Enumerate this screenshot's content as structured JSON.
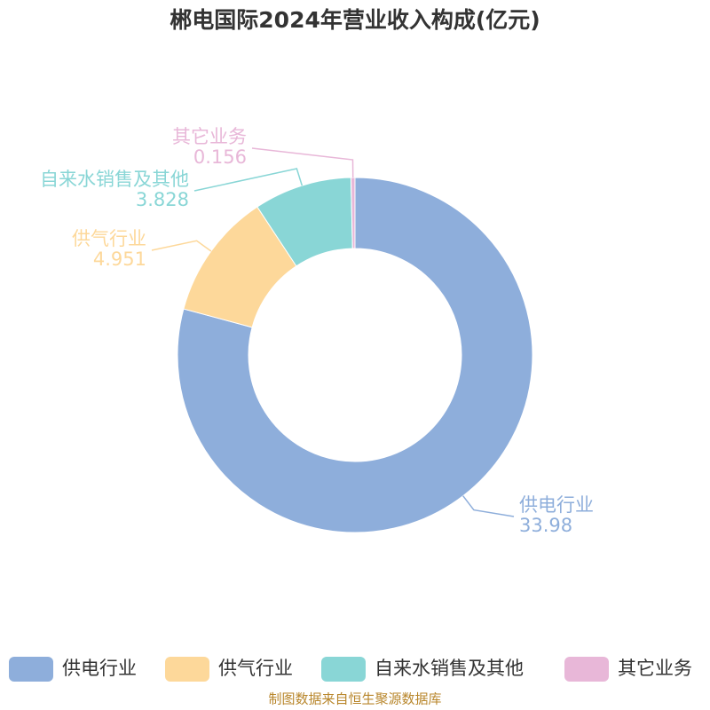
{
  "chart_data": {
    "type": "pie",
    "title": "郴电国际2024年营业收入构成(亿元)",
    "categories": [
      "供电行业",
      "供气行业",
      "自来水销售及其他",
      "其它业务"
    ],
    "values": [
      33.98,
      4.951,
      3.828,
      0.156
    ],
    "colors": [
      "#8eaedb",
      "#fdd89a",
      "#89d6d6",
      "#e8b7d8"
    ],
    "legend": "bottom",
    "source": "制图数据来自恒生聚源数据库"
  }
}
